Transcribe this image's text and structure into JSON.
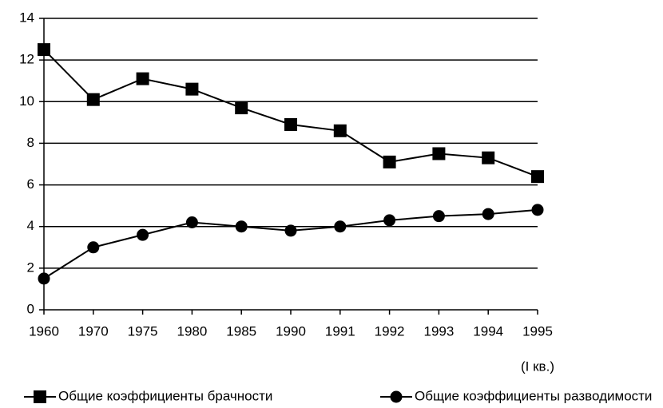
{
  "chart_data": {
    "type": "line",
    "categories": [
      "1960",
      "1970",
      "1975",
      "1980",
      "1985",
      "1990",
      "1991",
      "1992",
      "1993",
      "1994",
      "1995"
    ],
    "annotations": [
      "(I кв.)"
    ],
    "series": [
      {
        "name": "Общие коэффициенты брачности",
        "color": "#000000",
        "marker": "square",
        "values": [
          12.5,
          10.1,
          11.1,
          10.6,
          9.7,
          8.9,
          8.6,
          7.1,
          7.5,
          7.3,
          6.4
        ]
      },
      {
        "name": "Общие коэффициенты разводимости",
        "color": "#000000",
        "marker": "circle",
        "values": [
          1.5,
          3.0,
          3.6,
          4.2,
          4.0,
          3.8,
          4.0,
          4.3,
          4.5,
          4.6,
          4.8
        ]
      }
    ],
    "ylim": [
      0,
      14
    ],
    "yticks": [
      0,
      2,
      4,
      6,
      8,
      10,
      12,
      14
    ],
    "grid": true,
    "legend": "bottom"
  }
}
